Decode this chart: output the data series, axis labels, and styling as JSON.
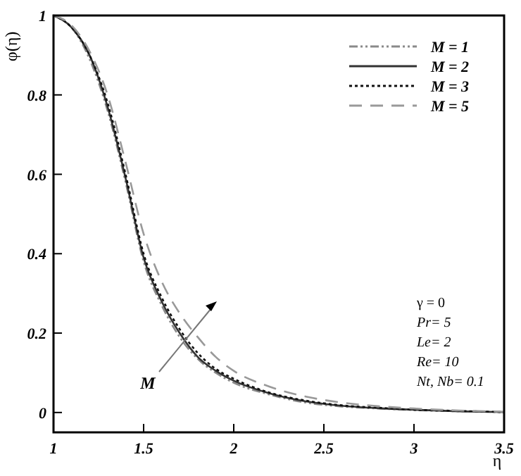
{
  "chart_data": {
    "type": "line",
    "xlabel": "η",
    "ylabel": "φ(η)",
    "x": [
      1,
      1.1,
      1.2,
      1.3,
      1.4,
      1.5,
      1.6,
      1.7,
      1.8,
      1.9,
      2,
      2.2,
      2.4,
      2.6,
      2.8,
      3,
      3.25,
      3.5
    ],
    "series": [
      {
        "name": "M = 1",
        "color": "#8a8a8a",
        "line_style": "dashdotdot",
        "values": [
          1,
          0.97,
          0.89,
          0.76,
          0.58,
          0.38,
          0.27,
          0.19,
          0.135,
          0.1,
          0.075,
          0.045,
          0.025,
          0.015,
          0.01,
          0.006,
          0.003,
          0.001
        ]
      },
      {
        "name": "M = 2",
        "color": "#333333",
        "line_style": "solid",
        "values": [
          1,
          0.97,
          0.9,
          0.77,
          0.59,
          0.39,
          0.28,
          0.2,
          0.14,
          0.105,
          0.08,
          0.048,
          0.028,
          0.017,
          0.011,
          0.007,
          0.003,
          0.001
        ]
      },
      {
        "name": "M = 3",
        "color": "#111111",
        "line_style": "dotted",
        "values": [
          1,
          0.97,
          0.9,
          0.78,
          0.6,
          0.4,
          0.29,
          0.21,
          0.15,
          0.11,
          0.085,
          0.05,
          0.03,
          0.018,
          0.012,
          0.007,
          0.004,
          0.001
        ]
      },
      {
        "name": "M = 5",
        "color": "#999999",
        "line_style": "dashed",
        "values": [
          1,
          0.975,
          0.91,
          0.8,
          0.63,
          0.45,
          0.33,
          0.25,
          0.19,
          0.14,
          0.105,
          0.065,
          0.04,
          0.025,
          0.016,
          0.01,
          0.005,
          0.002
        ]
      }
    ],
    "xlim": [
      1,
      3.5
    ],
    "xticks": [
      1,
      1.5,
      2,
      2.5,
      3,
      3.5
    ],
    "ylim": [
      -0.05,
      1
    ],
    "yticks": [
      0,
      0.2,
      0.4,
      0.6,
      0.8,
      1
    ],
    "legend": "top right",
    "grid": false,
    "annotations": [
      "M",
      "γ = 0",
      "Pr= 5",
      "Le= 2",
      "Re= 10",
      "Nt, Nb= 0.1"
    ]
  }
}
